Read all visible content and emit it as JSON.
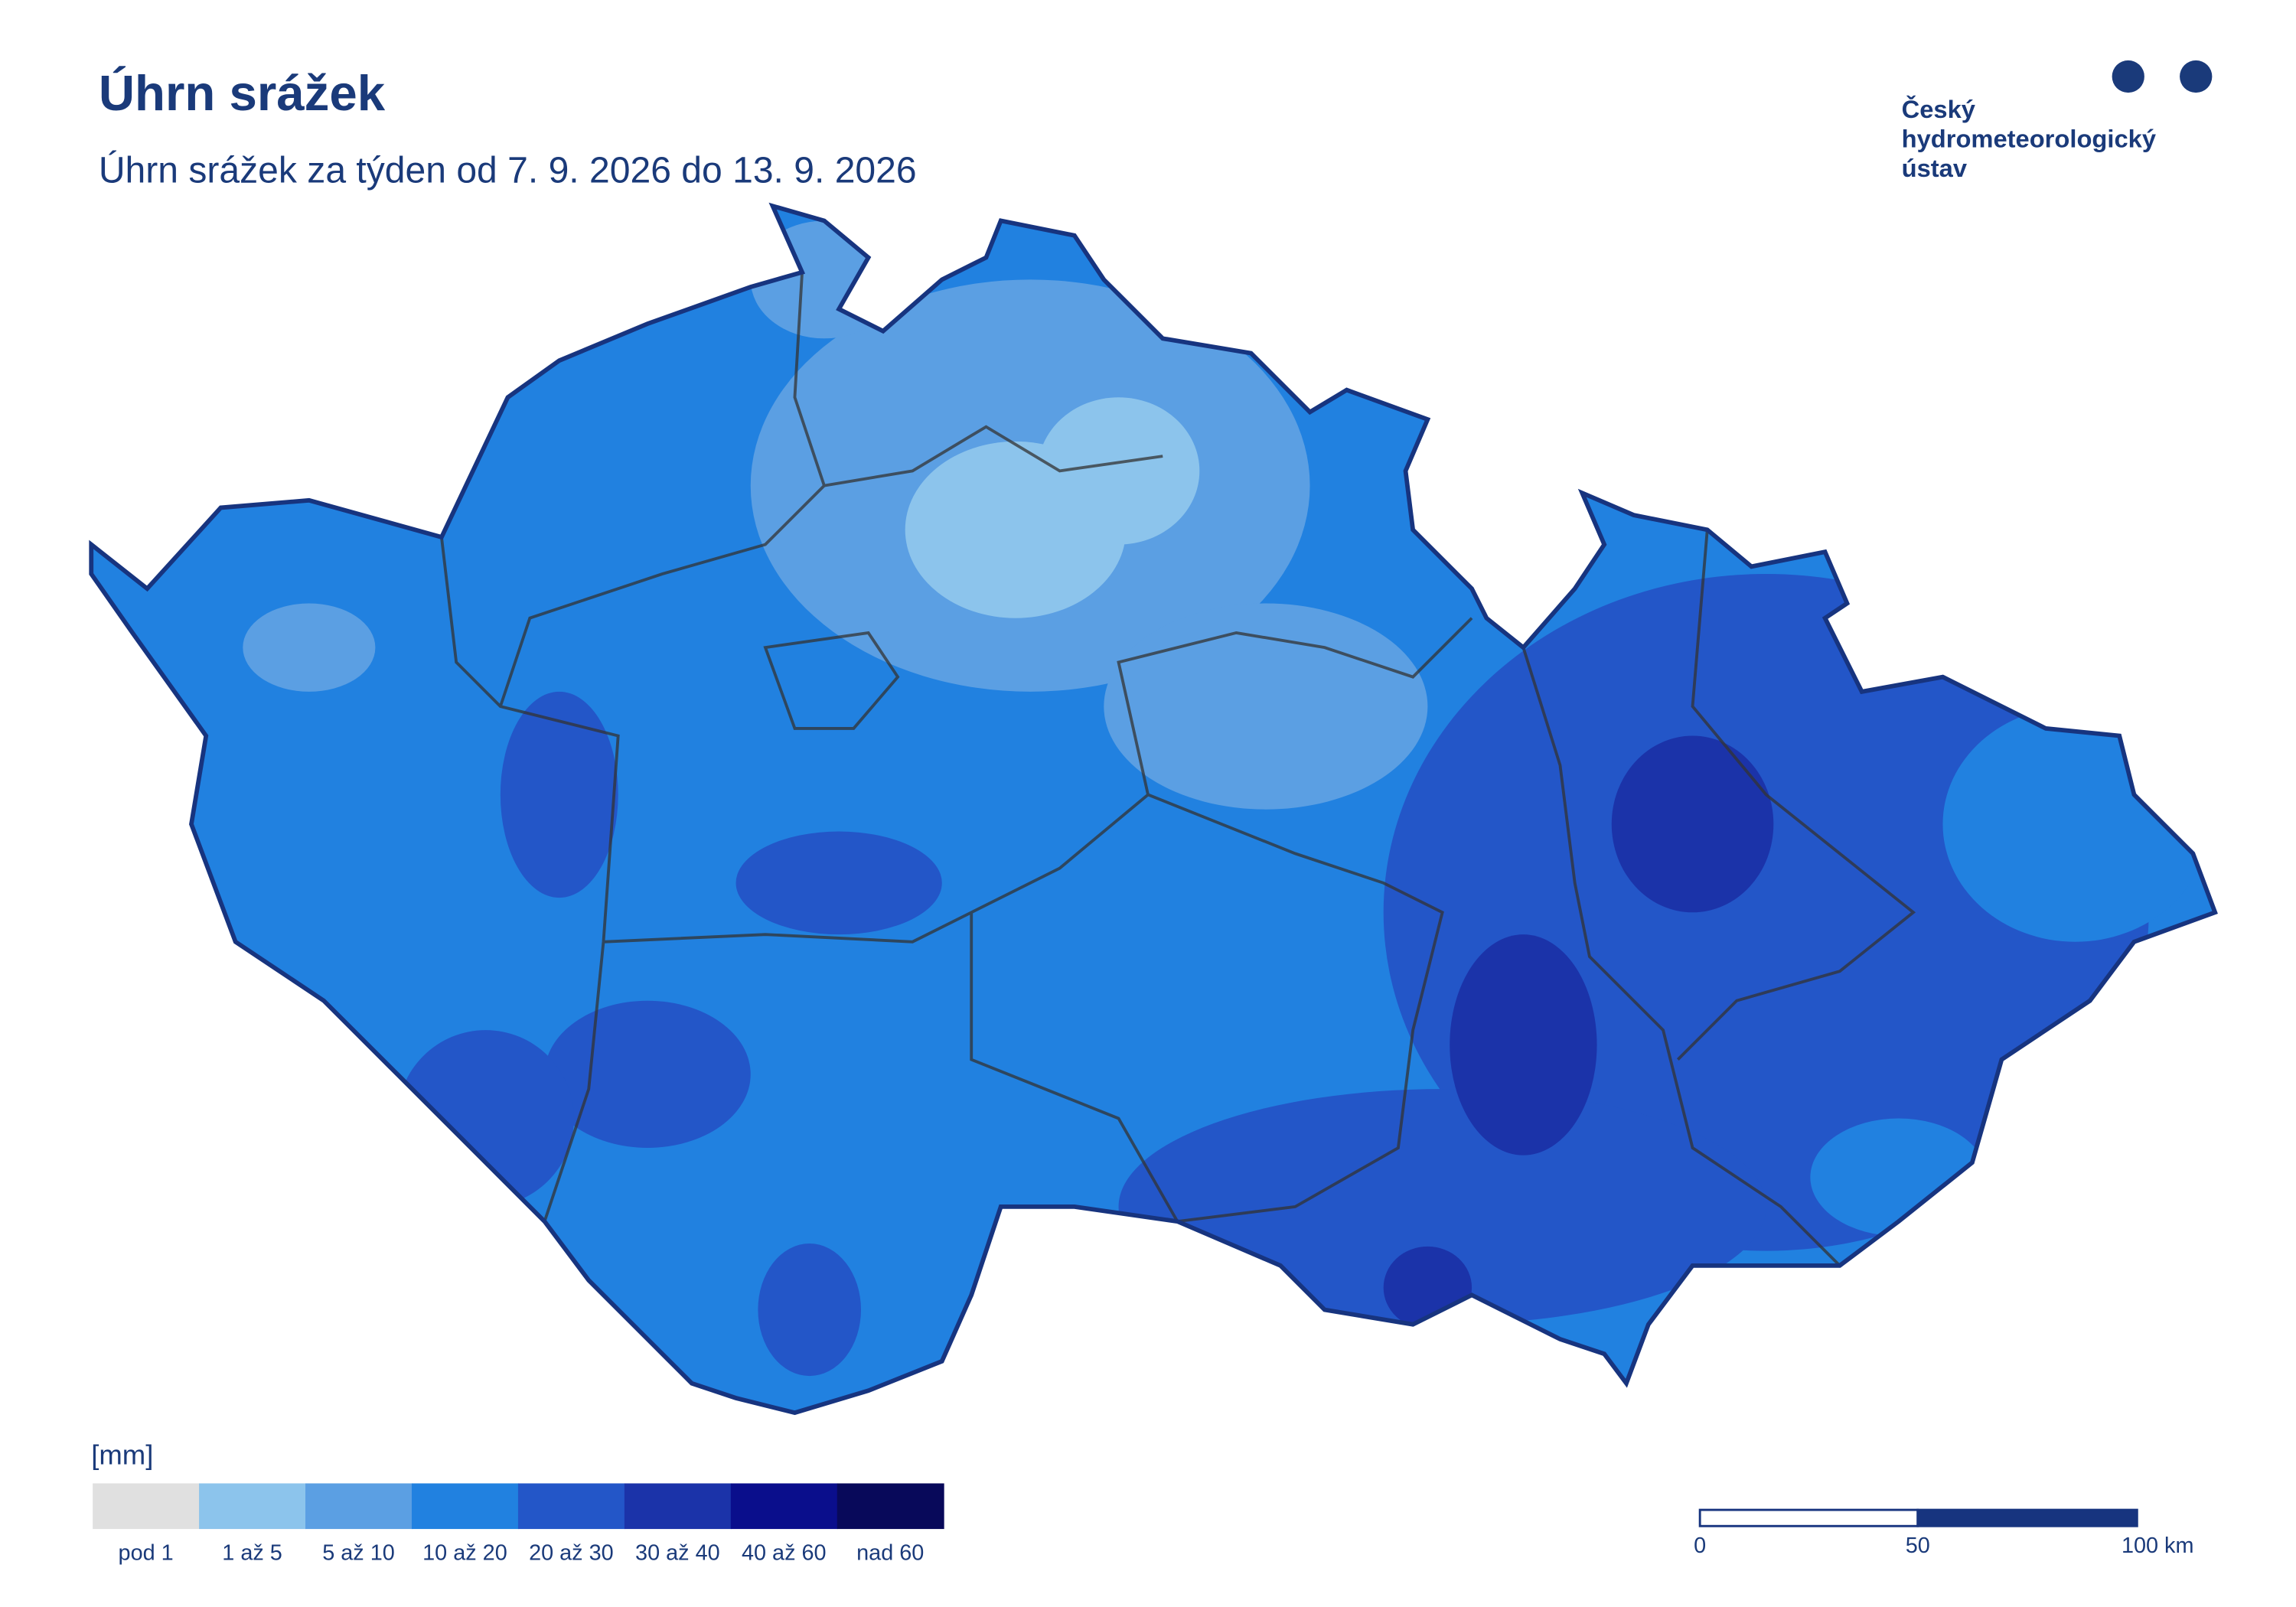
{
  "header": {
    "title": "Úhrn srážek",
    "subtitle": "Úhrn srážek za týden od 7. 9. 2026 do 13. 9. 2026"
  },
  "logo": {
    "lines": [
      "Český",
      "hydrometeorologický",
      "ústav"
    ]
  },
  "legend": {
    "unit": "[mm]",
    "items": [
      {
        "label": "pod 1",
        "color": "#e0e0e0"
      },
      {
        "label": "1 až 5",
        "color": "#8cc4ec"
      },
      {
        "label": "5 až 10",
        "color": "#5b9fe3"
      },
      {
        "label": "10 až 20",
        "color": "#2181e0"
      },
      {
        "label": "20 až 30",
        "color": "#2356c8"
      },
      {
        "label": "30 až 40",
        "color": "#1b33a9"
      },
      {
        "label": "40 až 60",
        "color": "#0a0e8c"
      },
      {
        "label": "nad 60",
        "color": "#08095a"
      }
    ]
  },
  "scale_bar": {
    "labels": [
      "0",
      "50",
      "100 km"
    ]
  }
}
